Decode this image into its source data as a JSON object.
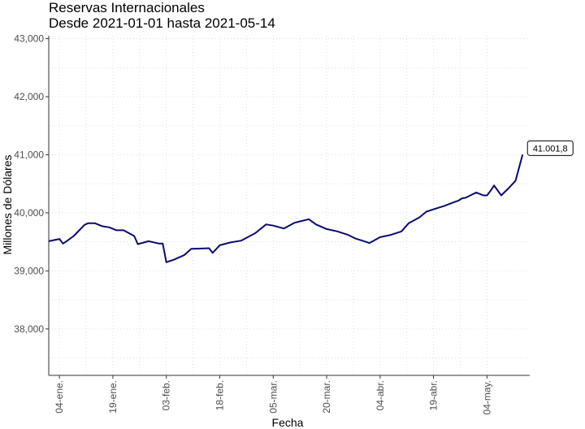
{
  "chart_data": {
    "type": "line",
    "title": "Reservas Internacionales",
    "subtitle": "Desde 2021-01-01 hasta 2021-05-14",
    "xlabel": "Fecha",
    "ylabel": "Millones de Dólares",
    "ylim": [
      37200,
      43050
    ],
    "y_ticks": [
      38000,
      39000,
      40000,
      41000,
      42000,
      43000
    ],
    "y_tick_labels": [
      "38,000",
      "39,000",
      "40,000",
      "41,000",
      "42,000",
      "43,000"
    ],
    "xlim": [
      "2021-01-01",
      "2021-05-16"
    ],
    "x_ticks": [
      "2021-01-04",
      "2021-01-19",
      "2021-02-03",
      "2021-02-18",
      "2021-03-05",
      "2021-03-20",
      "2021-04-04",
      "2021-04-19",
      "2021-05-04"
    ],
    "x_tick_labels": [
      "04-ene.",
      "19-ene.",
      "03-feb.",
      "18-feb.",
      "05-mar.",
      "20-mar.",
      "04-abr.",
      "19-abr.",
      "04-may."
    ],
    "grid": true,
    "line_color": "#0a0a6e",
    "end_label": "41.001,8",
    "series": [
      {
        "x": [
          "2021-01-01",
          "2021-01-04",
          "2021-01-05",
          "2021-01-06",
          "2021-01-08",
          "2021-01-11",
          "2021-01-12",
          "2021-01-14",
          "2021-01-16",
          "2021-01-18",
          "2021-01-20",
          "2021-01-22",
          "2021-01-25",
          "2021-01-26",
          "2021-01-29",
          "2021-02-01",
          "2021-02-02",
          "2021-02-03",
          "2021-02-05",
          "2021-02-08",
          "2021-02-10",
          "2021-02-15",
          "2021-02-16",
          "2021-02-18",
          "2021-02-21",
          "2021-02-24",
          "2021-02-28",
          "2021-03-03",
          "2021-03-05",
          "2021-03-08",
          "2021-03-11",
          "2021-03-15",
          "2021-03-17",
          "2021-03-20",
          "2021-03-23",
          "2021-03-26",
          "2021-03-28",
          "2021-03-30",
          "2021-04-01",
          "2021-04-04",
          "2021-04-07",
          "2021-04-10",
          "2021-04-12",
          "2021-04-15",
          "2021-04-17",
          "2021-04-20",
          "2021-04-22",
          "2021-04-25",
          "2021-04-26",
          "2021-04-27",
          "2021-04-28",
          "2021-05-01",
          "2021-05-03",
          "2021-05-04",
          "2021-05-05",
          "2021-05-06",
          "2021-05-08",
          "2021-05-10",
          "2021-05-12",
          "2021-05-14"
        ],
        "values": [
          39510,
          39550,
          39470,
          39510,
          39600,
          39790,
          39820,
          39820,
          39770,
          39750,
          39700,
          39700,
          39600,
          39460,
          39510,
          39470,
          39470,
          39150,
          39190,
          39270,
          39380,
          39390,
          39310,
          39440,
          39490,
          39520,
          39650,
          39800,
          39780,
          39730,
          39830,
          39890,
          39800,
          39720,
          39680,
          39620,
          39560,
          39520,
          39480,
          39580,
          39620,
          39680,
          39820,
          39920,
          40020,
          40080,
          40120,
          40190,
          40210,
          40250,
          40260,
          40350,
          40300,
          40300,
          40380,
          40470,
          40300,
          40420,
          40550,
          41002
        ]
      }
    ]
  }
}
